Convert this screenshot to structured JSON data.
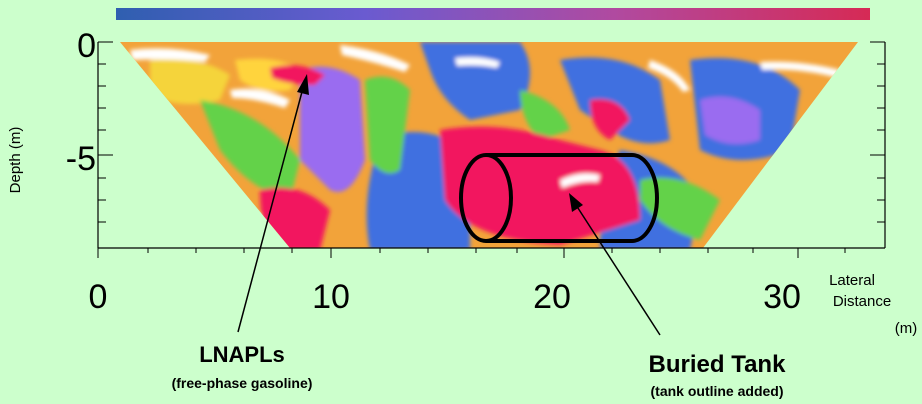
{
  "figure": {
    "y_axis_label": "Depth (m)",
    "y_ticks": [
      "0",
      "-5"
    ],
    "x_ticks": [
      "0",
      "10",
      "20",
      "30"
    ],
    "x_axis_label_line1": "Lateral",
    "x_axis_label_line2": "Distance",
    "x_axis_unit": "(m)"
  },
  "annotations": {
    "lnapl_title": "LNAPLs",
    "lnapl_subtitle": "(free-phase gasoline)",
    "tank_title": "Buried Tank",
    "tank_subtitle": "(tank outline added)"
  },
  "colorbar": {
    "colors": [
      "#2f5fb0",
      "#6a5bd0",
      "#b04aa0",
      "#d62a55"
    ]
  },
  "palette": {
    "background": "#ccffcc",
    "section_base": "#f2a33a",
    "high": "#f2135f",
    "low": "#3f6fe0",
    "violet": "#9a6cf0",
    "green": "#63d24a",
    "yellow": "#ffd43c",
    "white": "#ffffff"
  }
}
